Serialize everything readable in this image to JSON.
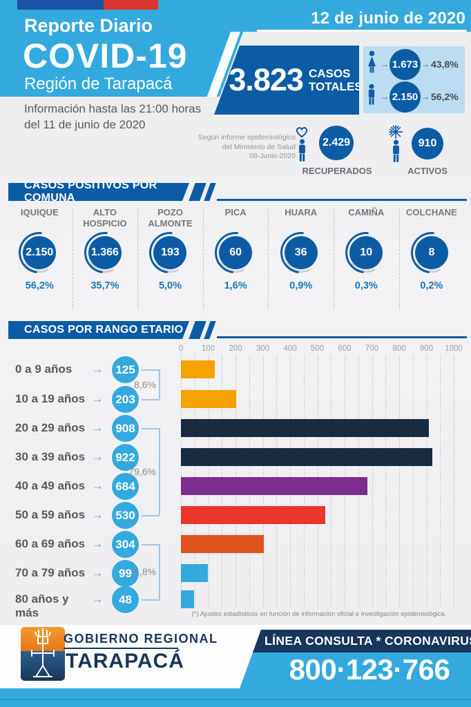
{
  "header": {
    "date": "12 de junio de 2020",
    "report_label": "Reporte Diario",
    "title": "COVID-19",
    "region": "Región de Tarapacá",
    "info1": "Información hasta las 21:00 horas",
    "info2": "del 11 de junio de 2020",
    "totals": {
      "value": "3.823",
      "casos": "CASOS",
      "totales": "TOTALES"
    },
    "gender": {
      "female": {
        "value": "1.673",
        "pct": "43,8%"
      },
      "male": {
        "value": "2.150",
        "pct": "56,2%"
      }
    }
  },
  "status": {
    "note1": "Según informe epidemiológico",
    "note2": "del Ministerio de Salud",
    "note3": "08-Junio-2020",
    "recovered": {
      "value": "2.429",
      "label": "RECUPERADOS"
    },
    "active": {
      "value": "910",
      "label": "ACTIVOS"
    }
  },
  "comuna": {
    "title": "CASOS POSITIVOS POR COMUNA",
    "items": [
      {
        "name": "IQUIQUE",
        "value": "2.150",
        "pct": "56,2%"
      },
      {
        "name": "ALTO HOSPICIO",
        "value": "1.366",
        "pct": "35,7%"
      },
      {
        "name": "POZO ALMONTE",
        "value": "193",
        "pct": "5,0%"
      },
      {
        "name": "PICA",
        "value": "60",
        "pct": "1,6%"
      },
      {
        "name": "HUARA",
        "value": "36",
        "pct": "0,9%"
      },
      {
        "name": "CAMIÑA",
        "value": "10",
        "pct": "0,3%"
      },
      {
        "name": "COLCHANE",
        "value": "8",
        "pct": "0,2%"
      }
    ]
  },
  "age": {
    "title": "CASOS POR RANGO ETARIO",
    "footnote": "(*) Ajustes estadísticos en función de información oficial e investigación epidemiológica.",
    "chart_data": {
      "type": "bar",
      "orientation": "horizontal",
      "categories": [
        "0 a 9 años",
        "10 a 19 años",
        "20 a 29 años",
        "30 a 39 años",
        "40 a 49 años",
        "50 a 59 años",
        "60 a 69 años",
        "70 a 79 años",
        "80 años y más"
      ],
      "values": [
        125,
        203,
        908,
        922,
        684,
        530,
        304,
        99,
        48
      ],
      "value_labels": [
        "125",
        "203",
        "908",
        "922",
        "684",
        "530",
        "304",
        "99",
        "48"
      ],
      "bar_colors": [
        "#f5a100",
        "#f5a100",
        "#1b2b3f",
        "#1b2b3f",
        "#7c2e90",
        "#e8362d",
        "#e0521d",
        "#33a9de",
        "#33a9de"
      ],
      "xlim": [
        0,
        1000
      ],
      "x_ticks": [
        0,
        100,
        200,
        300,
        400,
        500,
        600,
        700,
        800,
        900,
        1000
      ],
      "grid": "vertical-dashed",
      "brackets": [
        {
          "from_row": 0,
          "to_row": 1,
          "label": "8,6%"
        },
        {
          "from_row": 2,
          "to_row": 5,
          "label": "79,6%"
        },
        {
          "from_row": 6,
          "to_row": 8,
          "label": "11,8%"
        }
      ]
    }
  },
  "footer": {
    "gov_line1": "GOBIERNO REGIONAL",
    "gov_line2": "TARAPACÁ",
    "phone_label": "LÍNEA CONSULTA * CORONAVIRUS",
    "phone": "800·123·766"
  },
  "colors": {
    "light_blue": "#33a9de",
    "primary_blue": "#0c5ca5",
    "navy": "#16365b",
    "bar_navy": "#1b2b3f",
    "orange": "#f5a100",
    "purple": "#7c2e90",
    "red": "#e8362d",
    "orange_red": "#e0521d",
    "panel_light_blue": "#bcddf1",
    "flag_blue": "#1d52a4",
    "flag_red": "#db3832",
    "pct_blue": "#1c75bc"
  }
}
